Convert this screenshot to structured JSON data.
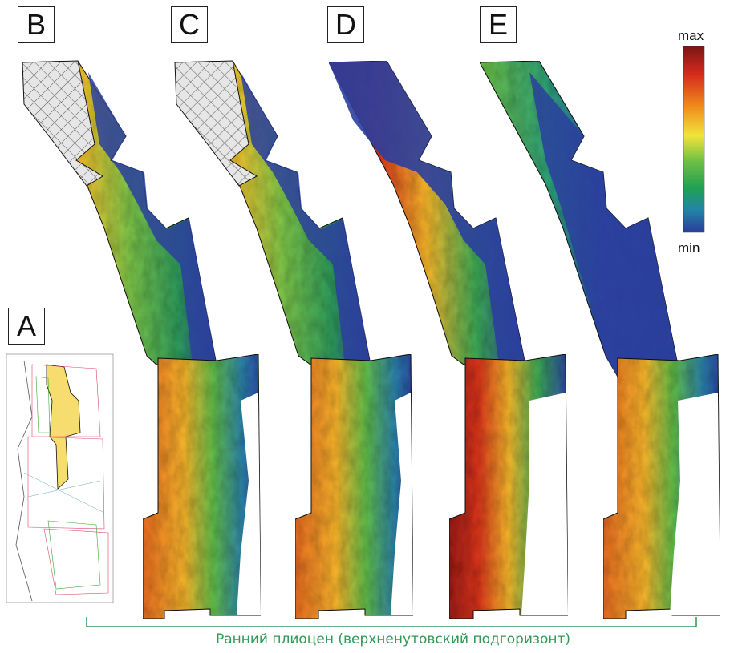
{
  "panels": {
    "A": "A",
    "B": "B",
    "C": "C",
    "D": "D",
    "E": "E"
  },
  "colorbar": {
    "max_label": "max",
    "min_label": "min",
    "colors": [
      "#8b1a1a",
      "#d92c1c",
      "#f08a1c",
      "#f2e23a",
      "#7fc44a",
      "#2da84f",
      "#1f8fa0",
      "#2b3f9e"
    ]
  },
  "caption": "Ранний плиоцен (верхненутовский подгоризонт)",
  "colors": {
    "caption": "#2e9a55",
    "map_blue": "#2a3f9e",
    "hatch_fill": "#e8e8e8",
    "inset_yellow": "#f7dc6f"
  }
}
